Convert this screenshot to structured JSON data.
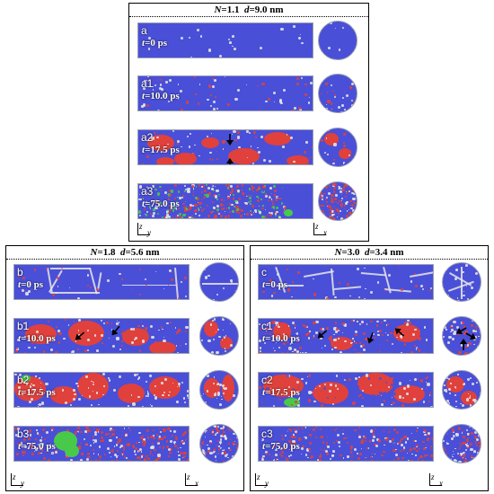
{
  "panels": {
    "a": {
      "title_N": "1.1",
      "title_d": "9.0 nm",
      "rows": [
        {
          "id": "a",
          "time": "0 ps"
        },
        {
          "id": "a1",
          "time": "10.0 ps"
        },
        {
          "id": "a2",
          "time": "17.5 ps"
        },
        {
          "id": "a3",
          "time": "75.0 ps"
        }
      ],
      "axis1": {
        "v": "z",
        "h": "y"
      },
      "axis2": {
        "v": "z",
        "h": "x"
      }
    },
    "b": {
      "title_N": "1.8",
      "title_d": "5.6 nm",
      "rows": [
        {
          "id": "b",
          "time": "0 ps"
        },
        {
          "id": "b1",
          "time": "10.0 ps"
        },
        {
          "id": "b2",
          "time": "17.5 ps"
        },
        {
          "id": "b3",
          "time": "75.0 ps"
        }
      ],
      "axis1": {
        "v": "z",
        "h": "y"
      },
      "axis2": {
        "v": "z",
        "h": "x"
      }
    },
    "c": {
      "title_N": "3.0",
      "title_d": "3.4 nm",
      "rows": [
        {
          "id": "c",
          "time": "0 ps"
        },
        {
          "id": "c1",
          "time": "10.0 ps"
        },
        {
          "id": "c2",
          "time": "17.5 ps"
        },
        {
          "id": "c3",
          "time": "75.0 ps"
        }
      ],
      "axis1": {
        "v": "z",
        "h": "y"
      },
      "axis2": {
        "v": "z",
        "h": "x"
      }
    }
  },
  "labels": {
    "N": "N",
    "d": "d",
    "t": "t",
    "eq": "=",
    "sep": "  "
  },
  "colors": {
    "bcc": "#4a4fd8",
    "fcc": "#e0413c",
    "hcp": "#49c94a",
    "other": "#e6e6e6"
  }
}
